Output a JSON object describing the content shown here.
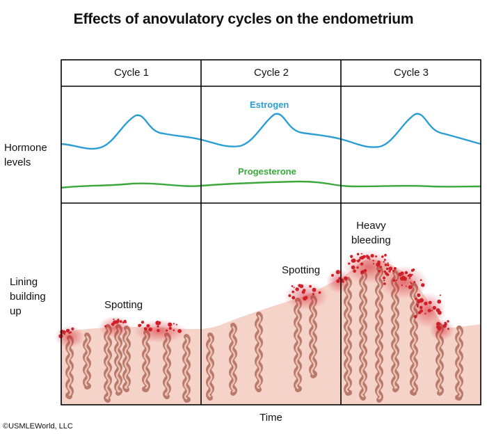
{
  "title": "Effects of anovulatory cycles on the endometrium",
  "cycles": [
    "Cycle 1",
    "Cycle 2",
    "Cycle 3"
  ],
  "row_labels": {
    "hormone": [
      "Hormone",
      "levels"
    ],
    "lining": [
      "Lining",
      "building",
      "up"
    ]
  },
  "hormones": {
    "estrogen": {
      "label": "Estrogen",
      "color": "#2a9ed3"
    },
    "progesterone": {
      "label": "Progesterone",
      "color": "#3aa83c"
    }
  },
  "annotations": {
    "spotting_1": "Spotting",
    "spotting_2": "Spotting",
    "heavy": [
      "Heavy",
      "bleeding"
    ]
  },
  "x_axis_label": "Time",
  "copyright": "©USMLEWorld, LLC",
  "colors": {
    "tissue": "#f6d3c9",
    "gland": "#b97a6b",
    "gland_inner": "#ecc3b6",
    "blood": "#d11f2a",
    "border": "#000000"
  }
}
